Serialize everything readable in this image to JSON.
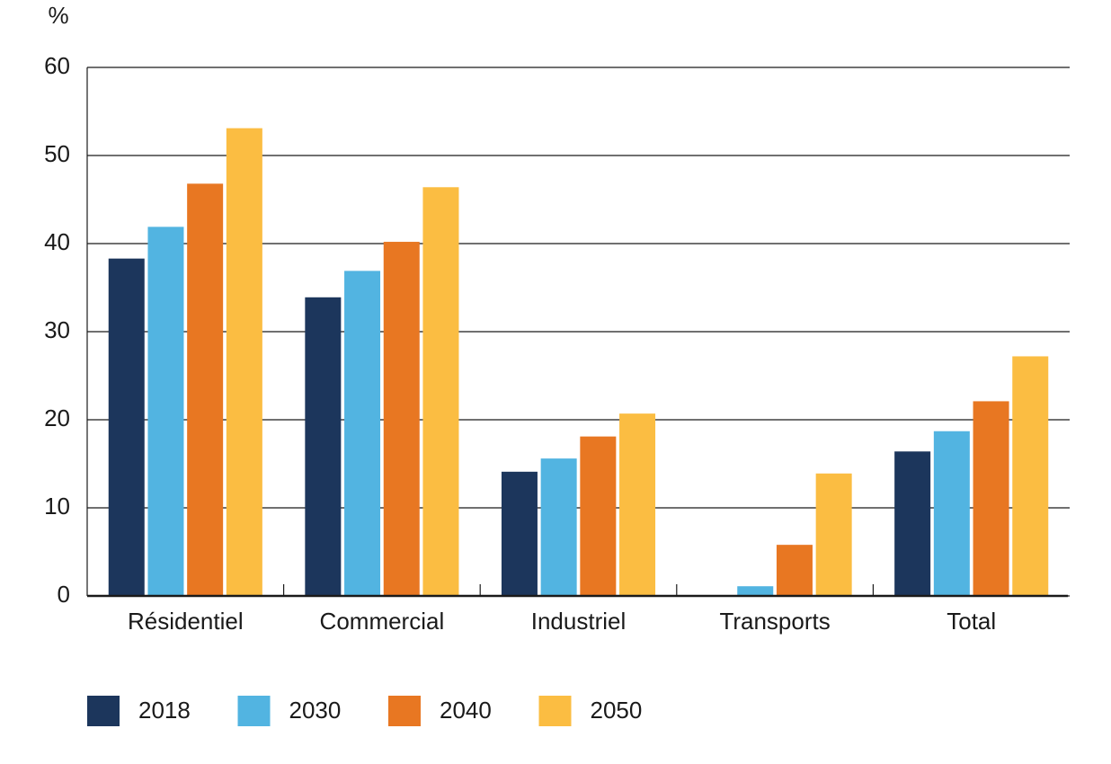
{
  "chart_data": {
    "type": "bar",
    "y_label": "%",
    "categories": [
      "Résidentiel",
      "Commercial",
      "Industriel",
      "Transports",
      "Total"
    ],
    "series": [
      {
        "name": "2018",
        "color": "#1c365c",
        "values": [
          38.3,
          33.9,
          14.1,
          0.1,
          16.4
        ]
      },
      {
        "name": "2030",
        "color": "#52b4e1",
        "values": [
          41.9,
          36.9,
          15.6,
          1.1,
          18.7
        ]
      },
      {
        "name": "2040",
        "color": "#e87722",
        "values": [
          46.8,
          40.2,
          18.1,
          5.8,
          22.1
        ]
      },
      {
        "name": "2050",
        "color": "#fbbd42",
        "values": [
          53.1,
          46.4,
          20.7,
          13.9,
          27.2
        ]
      }
    ],
    "ylim": [
      0,
      60
    ],
    "yticks": [
      0,
      10,
      20,
      30,
      40,
      50,
      60
    ],
    "grid": true,
    "legend": "bottom"
  }
}
